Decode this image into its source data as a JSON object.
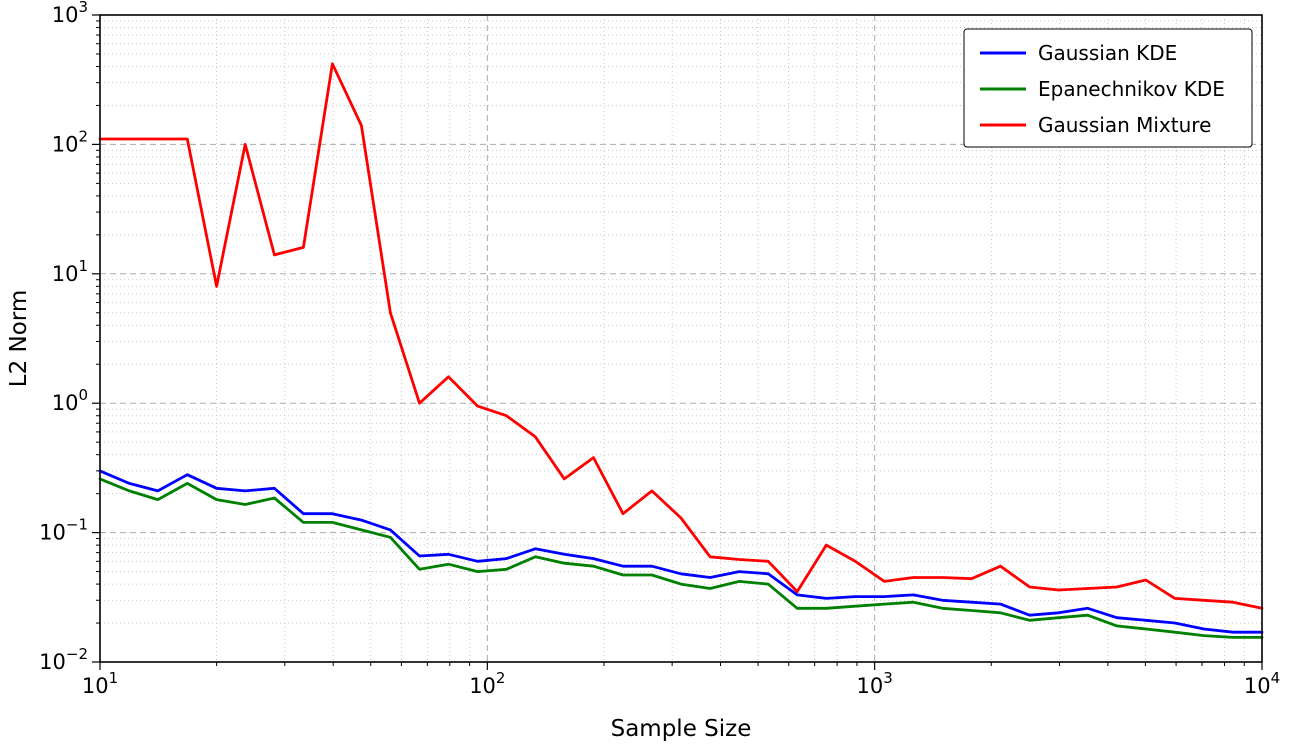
{
  "figure": {
    "background": "#ffffff",
    "plot_border_color": "#000000",
    "grid_major_color": "#aaaaaa",
    "grid_minor_color": "#bdbdbd"
  },
  "chart_data": {
    "type": "line",
    "title": "",
    "xlabel": "Sample Size",
    "ylabel": "L2 Norm",
    "x_scale": "log",
    "y_scale": "log",
    "xlim": [
      10,
      10000
    ],
    "ylim": [
      0.01,
      1000
    ],
    "grid": "on (major dashed, minor dotted)",
    "legend_position": "upper right",
    "x_tick_exponents": [
      1,
      2,
      3,
      4
    ],
    "y_tick_exponents": [
      -2,
      -1,
      0,
      1,
      2,
      3
    ],
    "x": [
      10,
      11.9,
      14.1,
      16.8,
      20,
      23.7,
      28.2,
      33.5,
      39.8,
      47.3,
      56.2,
      66.8,
      79.4,
      94.4,
      112,
      133,
      158,
      188,
      224,
      266,
      316,
      376,
      447,
      531,
      631,
      750,
      891,
      1059,
      1259,
      1496,
      1778,
      2113,
      2512,
      2985,
      3548,
      4217,
      5012,
      5957,
      7079,
      8414,
      10000
    ],
    "series": [
      {
        "name": "Gaussian KDE",
        "color": "#0000ff",
        "values": [
          0.3,
          0.24,
          0.21,
          0.28,
          0.22,
          0.21,
          0.22,
          0.14,
          0.14,
          0.125,
          0.105,
          0.066,
          0.068,
          0.06,
          0.063,
          0.075,
          0.068,
          0.063,
          0.055,
          0.055,
          0.048,
          0.045,
          0.05,
          0.048,
          0.033,
          0.031,
          0.032,
          0.032,
          0.033,
          0.03,
          0.029,
          0.028,
          0.023,
          0.024,
          0.026,
          0.022,
          0.021,
          0.02,
          0.018,
          0.017,
          0.017
        ]
      },
      {
        "name": "Epanechnikov KDE",
        "color": "#008000",
        "values": [
          0.26,
          0.21,
          0.18,
          0.24,
          0.18,
          0.165,
          0.185,
          0.12,
          0.12,
          0.105,
          0.092,
          0.052,
          0.057,
          0.05,
          0.052,
          0.065,
          0.058,
          0.055,
          0.047,
          0.047,
          0.04,
          0.037,
          0.042,
          0.04,
          0.026,
          0.026,
          0.027,
          0.028,
          0.029,
          0.026,
          0.025,
          0.024,
          0.021,
          0.022,
          0.023,
          0.019,
          0.018,
          0.017,
          0.016,
          0.0155,
          0.0155
        ]
      },
      {
        "name": "Gaussian Mixture",
        "color": "#ff0000",
        "values": [
          110,
          110,
          110,
          110,
          8,
          100,
          14,
          16,
          420,
          140,
          5,
          1.0,
          1.6,
          0.95,
          0.8,
          0.55,
          0.26,
          0.38,
          0.14,
          0.21,
          0.13,
          0.065,
          0.062,
          0.06,
          0.035,
          0.08,
          0.06,
          0.042,
          0.045,
          0.045,
          0.044,
          0.055,
          0.038,
          0.036,
          0.037,
          0.038,
          0.043,
          0.031,
          0.03,
          0.029,
          0.026
        ]
      }
    ],
    "legend": [
      "Gaussian KDE",
      "Epanechnikov KDE",
      "Gaussian Mixture"
    ]
  }
}
